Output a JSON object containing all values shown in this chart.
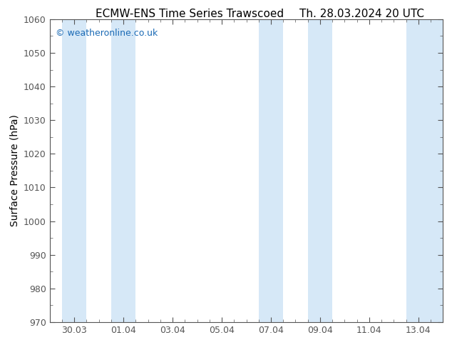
{
  "title_left": "ECMW-ENS Time Series Trawscoed",
  "title_right": "Th. 28.03.2024 20 UTC",
  "ylabel": "Surface Pressure (hPa)",
  "ylim": [
    970,
    1060
  ],
  "ytick_major": 10,
  "background_color": "#ffffff",
  "plot_bg_color": "#ffffff",
  "band_color": "#d6e8f7",
  "watermark": "© weatheronline.co.uk",
  "watermark_color": "#1a6ab5",
  "title_color": "#000000",
  "tick_color": "#555555",
  "spine_color": "#555555",
  "xtick_labels": [
    "30.03",
    "01.04",
    "03.04",
    "05.04",
    "07.04",
    "09.04",
    "11.04",
    "13.04"
  ],
  "xtick_positions": [
    1,
    3,
    5,
    7,
    9,
    11,
    13,
    15
  ],
  "x_min": 0,
  "x_max": 16,
  "band_regions": [
    [
      0.5,
      1.5
    ],
    [
      2.5,
      3.5
    ],
    [
      8.5,
      9.5
    ],
    [
      10.5,
      11.5
    ],
    [
      14.5,
      16.0
    ]
  ],
  "title_fontsize": 11,
  "watermark_fontsize": 9,
  "ylabel_fontsize": 10,
  "tick_labelsize": 9
}
